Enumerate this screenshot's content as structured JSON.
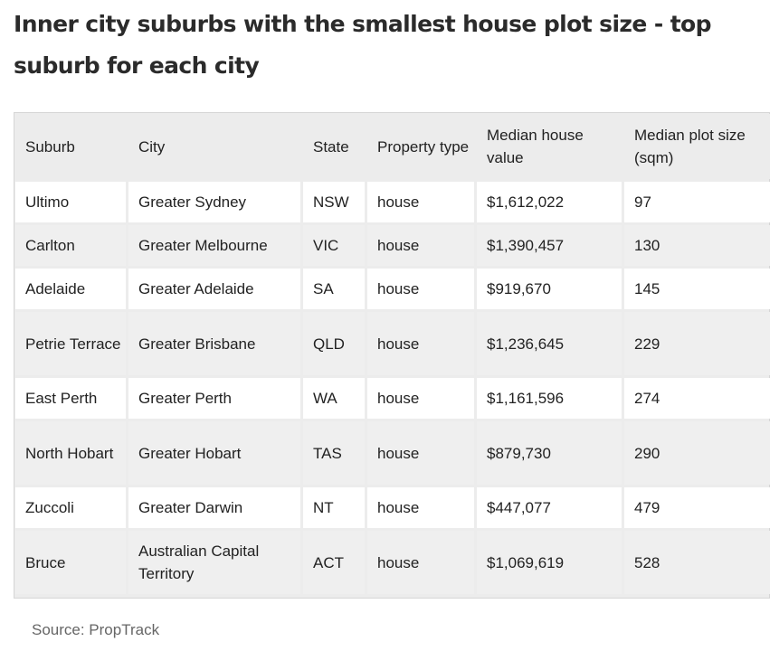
{
  "title": "Inner city suburbs with the smallest house plot size - top suburb for each city",
  "table": {
    "headers": [
      "Suburb",
      "City",
      "State",
      "Property type",
      "Median house value",
      "Median plot size (sqm)"
    ],
    "rows": [
      [
        "Ultimo",
        "Greater Sydney",
        "NSW",
        "house",
        "$1,612,022",
        "97"
      ],
      [
        "Carlton",
        "Greater Melbourne",
        "VIC",
        "house",
        "$1,390,457",
        "130"
      ],
      [
        "Adelaide",
        "Greater Adelaide",
        "SA",
        "house",
        "$919,670",
        "145"
      ],
      [
        "Petrie Terrace",
        "Greater Brisbane",
        "QLD",
        "house",
        "$1,236,645",
        "229"
      ],
      [
        "East Perth",
        "Greater Perth",
        "WA",
        "house",
        "$1,161,596",
        "274"
      ],
      [
        "North Hobart",
        "Greater Hobart",
        "TAS",
        "house",
        "$879,730",
        "290"
      ],
      [
        "Zuccoli",
        "Greater Darwin",
        "NT",
        "house",
        "$447,077",
        "479"
      ],
      [
        "Bruce",
        "Australian Capital Territory",
        "ACT",
        "house",
        "$1,069,619",
        "528"
      ]
    ]
  },
  "source": "Source: PropTrack"
}
